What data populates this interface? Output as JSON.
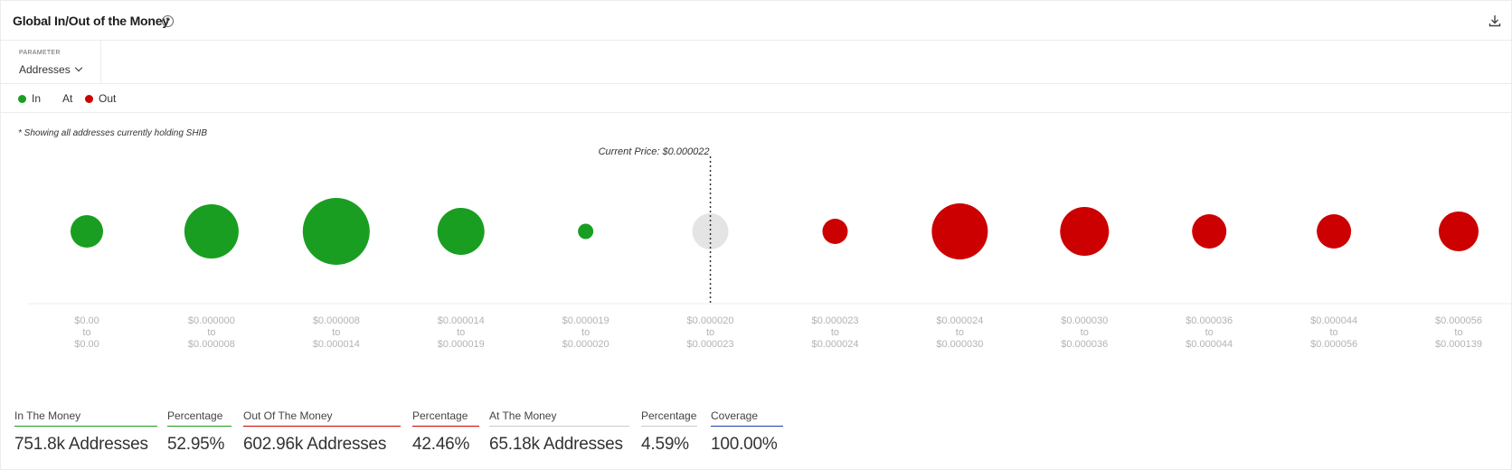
{
  "header": {
    "title": "Global In/Out of the Money",
    "help_glyph": "?"
  },
  "parameter": {
    "label": "PARAMETER",
    "value": "Addresses"
  },
  "legend": [
    {
      "label": "In",
      "color": "#1a9e22"
    },
    {
      "label": "At",
      "color": ""
    },
    {
      "label": "Out",
      "color": "#cc0000"
    }
  ],
  "note": "* Showing all addresses currently holding SHIB",
  "chart_data": {
    "type": "bubble",
    "current_price_label": "Current Price: $0.000022",
    "current_price_index": 5,
    "colors": {
      "in": "#1a9e22",
      "at": "#e4e4e4",
      "out": "#cc0000"
    },
    "categories": [
      {
        "from": "$0.00",
        "to": "$0.00",
        "status": "in",
        "size": 36
      },
      {
        "from": "$0.000000",
        "to": "$0.000008",
        "status": "in",
        "size": 60
      },
      {
        "from": "$0.000008",
        "to": "$0.000014",
        "status": "in",
        "size": 74
      },
      {
        "from": "$0.000014",
        "to": "$0.000019",
        "status": "in",
        "size": 52
      },
      {
        "from": "$0.000019",
        "to": "$0.000020",
        "status": "in",
        "size": 17
      },
      {
        "from": "$0.000020",
        "to": "$0.000023",
        "status": "at",
        "size": 40
      },
      {
        "from": "$0.000023",
        "to": "$0.000024",
        "status": "out",
        "size": 28
      },
      {
        "from": "$0.000024",
        "to": "$0.000030",
        "status": "out",
        "size": 62
      },
      {
        "from": "$0.000030",
        "to": "$0.000036",
        "status": "out",
        "size": 54
      },
      {
        "from": "$0.000036",
        "to": "$0.000044",
        "status": "out",
        "size": 38
      },
      {
        "from": "$0.000044",
        "to": "$0.000056",
        "status": "out",
        "size": 38
      },
      {
        "from": "$0.000056",
        "to": "$0.000139",
        "status": "out",
        "size": 44
      }
    ],
    "range_word": "to"
  },
  "stats": [
    {
      "label": "In The Money",
      "value": "751.8k Addresses",
      "color": "#1a9e22"
    },
    {
      "label": "Percentage",
      "value": "52.95%",
      "color": "#1a9e22"
    },
    {
      "label": "Out Of The Money",
      "value": "602.96k Addresses",
      "color": "#cc0000"
    },
    {
      "label": "Percentage",
      "value": "42.46%",
      "color": "#cc0000"
    },
    {
      "label": "At The Money",
      "value": "65.18k Addresses",
      "color": "#cccccc"
    },
    {
      "label": "Percentage",
      "value": "4.59%",
      "color": "#cccccc"
    },
    {
      "label": "Coverage",
      "value": "100.00%",
      "color": "#1d3fa6"
    }
  ]
}
